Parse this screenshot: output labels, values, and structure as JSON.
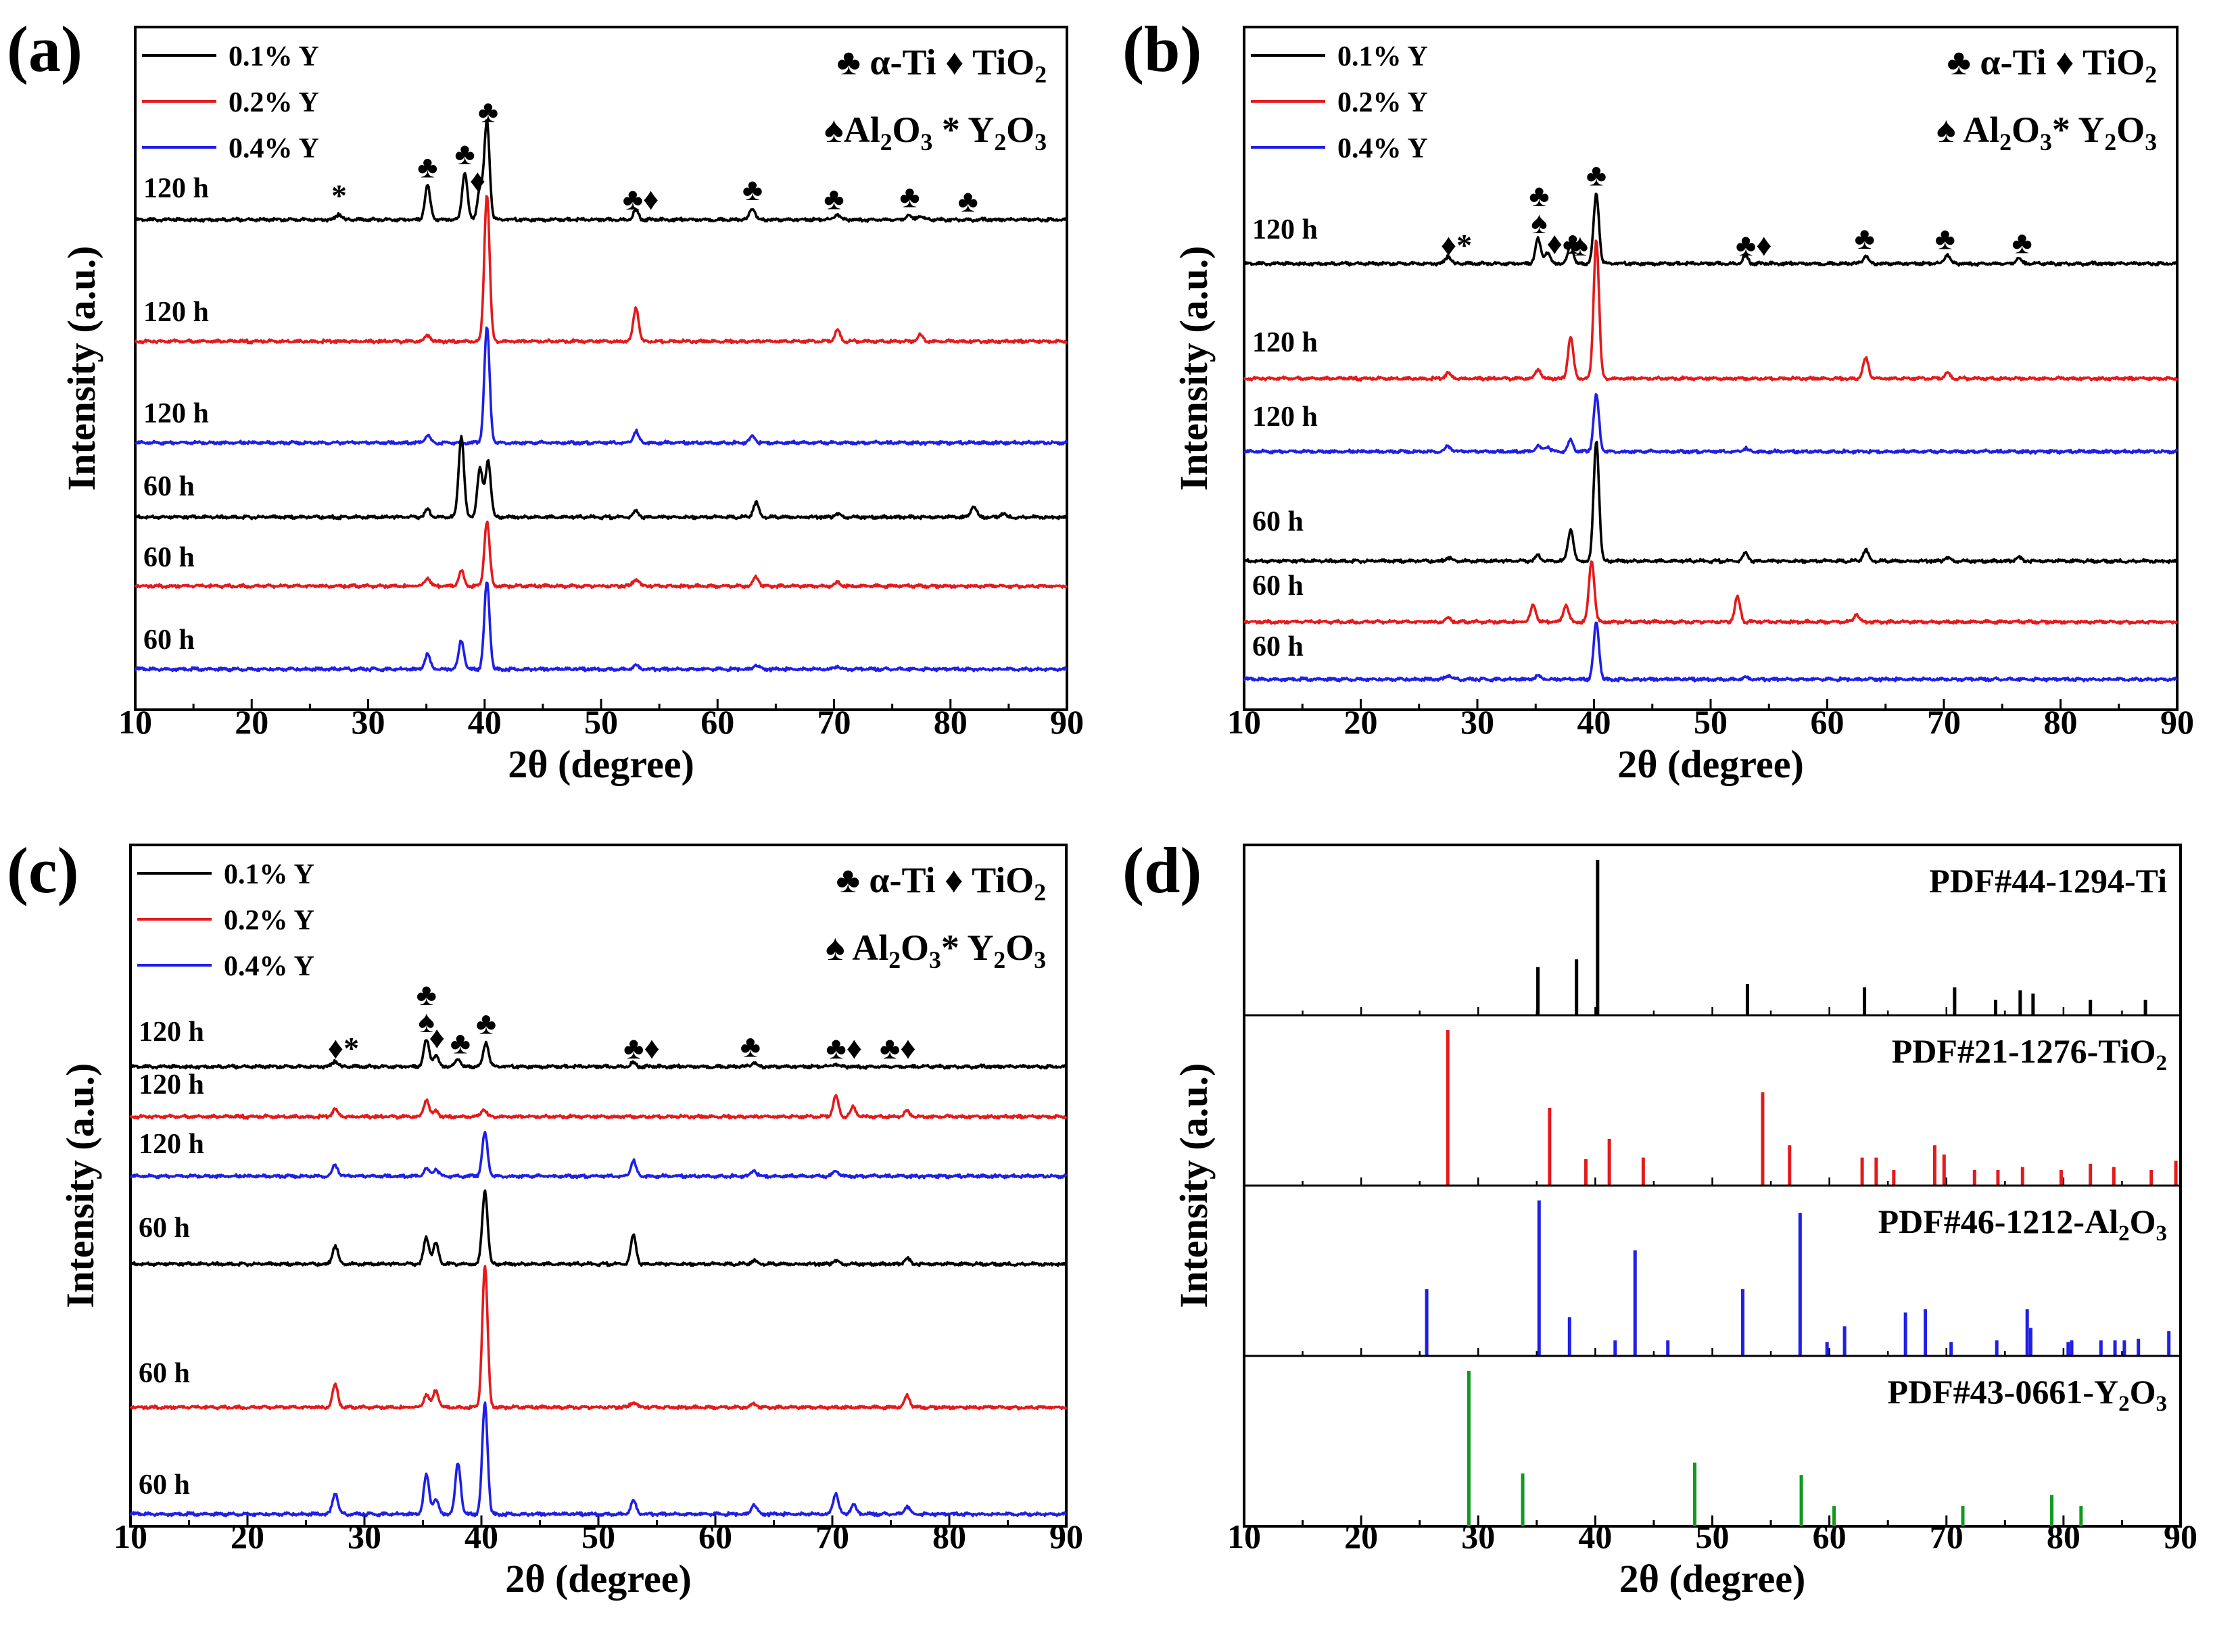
{
  "figure": {
    "axis_tick_labels": [
      "10",
      "20",
      "30",
      "40",
      "50",
      "60",
      "70",
      "80",
      "90"
    ],
    "ylabel": "Intensity (a.u.)",
    "xlabel": "2θ (degree)",
    "colors": {
      "y01": "#000000",
      "y02": "#e41a1c",
      "y04": "#1f1fe6",
      "y2o3": "#0f9a1e",
      "axis": "#000000"
    }
  },
  "chart_data": [
    {
      "panel": "(a)",
      "type": "line",
      "xlabel": "2θ (degree)",
      "ylabel": "Intensity (a.u.)",
      "xlim": [
        10,
        90
      ],
      "legend": [
        {
          "label": "0.1% Y",
          "color": "#000000"
        },
        {
          "label": "0.2% Y",
          "color": "#e41a1c"
        },
        {
          "label": "0.4% Y",
          "color": "#1f1fe6"
        }
      ],
      "phase_legend": {
        "line1": [
          "♣ α-Ti",
          "♦ TiO",
          "2"
        ],
        "line2": [
          "♠Al",
          "2",
          "O",
          "3",
          " * Y",
          "2",
          "O",
          "3"
        ]
      },
      "series": [
        {
          "name": "120 h",
          "color": "#000000",
          "baseline": 1.0,
          "peaks": [
            [
              27.5,
              0.3
            ],
            [
              35.1,
              1.8
            ],
            [
              38.3,
              2.5
            ],
            [
              39.6,
              1.6
            ],
            [
              40.2,
              5.2
            ],
            [
              53.0,
              0.5
            ],
            [
              63.0,
              0.6
            ],
            [
              70.3,
              0.3
            ],
            [
              76.4,
              0.25
            ],
            [
              77.4,
              0.2
            ]
          ]
        },
        {
          "name": "120 h",
          "color": "#e41a1c",
          "baseline": 1.0,
          "peaks": [
            [
              35.1,
              0.35
            ],
            [
              40.2,
              7.8
            ],
            [
              53.0,
              1.8
            ],
            [
              70.3,
              0.6
            ],
            [
              77.4,
              0.35
            ]
          ]
        },
        {
          "name": "120 h",
          "color": "#1f1fe6",
          "baseline": 1.0,
          "peaks": [
            [
              35.1,
              0.4
            ],
            [
              40.2,
              6.1
            ],
            [
              53.0,
              0.6
            ],
            [
              63.0,
              0.35
            ]
          ]
        },
        {
          "name": "60 h",
          "color": "#000000",
          "baseline": 1.0,
          "peaks": [
            [
              35.1,
              0.4
            ],
            [
              38.0,
              4.3
            ],
            [
              39.6,
              2.6
            ],
            [
              40.3,
              3.0
            ],
            [
              53.0,
              0.3
            ],
            [
              63.3,
              0.8
            ],
            [
              70.3,
              0.2
            ],
            [
              82.0,
              0.6
            ],
            [
              84.5,
              0.2
            ]
          ]
        },
        {
          "name": "60 h",
          "color": "#e41a1c",
          "baseline": 1.0,
          "peaks": [
            [
              35.1,
              0.45
            ],
            [
              38.0,
              0.8
            ],
            [
              40.2,
              3.4
            ],
            [
              53.0,
              0.4
            ],
            [
              63.3,
              0.5
            ],
            [
              70.3,
              0.2
            ]
          ]
        },
        {
          "name": "60 h",
          "color": "#1f1fe6",
          "baseline": 1.0,
          "peaks": [
            [
              35.1,
              0.8
            ],
            [
              38.0,
              1.5
            ],
            [
              40.2,
              4.6
            ],
            [
              53.0,
              0.2
            ],
            [
              63.3,
              0.2
            ],
            [
              70.3,
              0.15
            ]
          ]
        }
      ],
      "markers": [
        {
          "x": 27.5,
          "text": "*"
        },
        {
          "x": 35.1,
          "text": "♣"
        },
        {
          "x": 38.3,
          "text": "♣"
        },
        {
          "x": 39.4,
          "text": "♦"
        },
        {
          "x": 40.3,
          "text": "♣"
        },
        {
          "x": 53.4,
          "text": "♣♦"
        },
        {
          "x": 63.0,
          "text": "♣"
        },
        {
          "x": 70.0,
          "text": "♣"
        },
        {
          "x": 76.5,
          "text": "♣"
        },
        {
          "x": 81.5,
          "text": "♣"
        }
      ]
    },
    {
      "panel": "(b)",
      "type": "line",
      "xlabel": "2θ (degree)",
      "ylabel": "Intensity (a.u.)",
      "xlim": [
        10,
        90
      ],
      "legend": [
        {
          "label": "0.1% Y",
          "color": "#000000"
        },
        {
          "label": "0.2% Y",
          "color": "#e41a1c"
        },
        {
          "label": "0.4% Y",
          "color": "#1f1fe6"
        }
      ],
      "phase_legend": {
        "line1": [
          "♣ α-Ti",
          "♦ TiO",
          "2"
        ],
        "line2": [
          "♠ Al",
          "2",
          "O",
          "3",
          "* Y",
          "2",
          "O",
          "3"
        ]
      },
      "series": [
        {
          "name": "120 h",
          "color": "#000000",
          "baseline": 1.0,
          "peaks": [
            [
              27.5,
              0.4
            ],
            [
              35.2,
              1.3
            ],
            [
              36.0,
              0.6
            ],
            [
              38.0,
              1.0
            ],
            [
              40.2,
              3.7
            ],
            [
              53.0,
              0.4
            ],
            [
              63.3,
              0.4
            ],
            [
              70.3,
              0.5
            ],
            [
              76.4,
              0.3
            ]
          ]
        },
        {
          "name": "120 h",
          "color": "#e41a1c",
          "baseline": 1.0,
          "peaks": [
            [
              27.5,
              0.3
            ],
            [
              35.2,
              0.5
            ],
            [
              38.0,
              2.2
            ],
            [
              40.2,
              7.4
            ],
            [
              63.3,
              1.1
            ],
            [
              70.3,
              0.3
            ]
          ]
        },
        {
          "name": "120 h",
          "color": "#1f1fe6",
          "baseline": 1.0,
          "peaks": [
            [
              27.5,
              0.3
            ],
            [
              35.2,
              0.3
            ],
            [
              36.0,
              0.3
            ],
            [
              38.0,
              0.6
            ],
            [
              40.2,
              3.0
            ],
            [
              53.0,
              0.15
            ]
          ]
        },
        {
          "name": "60 h",
          "color": "#000000",
          "baseline": 1.0,
          "peaks": [
            [
              27.5,
              0.2
            ],
            [
              35.2,
              0.3
            ],
            [
              38.0,
              1.7
            ],
            [
              40.2,
              6.4
            ],
            [
              53.0,
              0.4
            ],
            [
              63.3,
              0.6
            ],
            [
              70.3,
              0.2
            ],
            [
              76.4,
              0.2
            ]
          ]
        },
        {
          "name": "60 h",
          "color": "#e41a1c",
          "baseline": 1.0,
          "peaks": [
            [
              27.5,
              0.2
            ],
            [
              34.8,
              0.9
            ],
            [
              37.6,
              0.9
            ],
            [
              39.8,
              3.3
            ],
            [
              52.3,
              1.3
            ],
            [
              62.5,
              0.4
            ]
          ]
        },
        {
          "name": "60 h",
          "color": "#1f1fe6",
          "baseline": 1.0,
          "peaks": [
            [
              27.5,
              0.2
            ],
            [
              35.2,
              0.2
            ],
            [
              40.2,
              3.0
            ],
            [
              53.0,
              0.1
            ]
          ]
        }
      ],
      "markers": [
        {
          "x": 28.2,
          "text": "♦*"
        },
        {
          "x": 35.3,
          "text": "♠"
        },
        {
          "x": 35.3,
          "text": "♣"
        },
        {
          "x": 37.5,
          "text": "♦♣"
        },
        {
          "x": 38.8,
          "text": "♠"
        },
        {
          "x": 40.2,
          "text": "♣"
        },
        {
          "x": 53.7,
          "text": "♣♦"
        },
        {
          "x": 63.2,
          "text": "♣"
        },
        {
          "x": 70.1,
          "text": "♣"
        },
        {
          "x": 76.7,
          "text": "♣"
        }
      ]
    },
    {
      "panel": "(c)",
      "type": "line",
      "xlabel": "2θ (degree)",
      "ylabel": "Intensity (a.u.)",
      "xlim": [
        10,
        90
      ],
      "legend": [
        {
          "label": "0.1% Y",
          "color": "#000000"
        },
        {
          "label": "0.2% Y",
          "color": "#e41a1c"
        },
        {
          "label": "0.4% Y",
          "color": "#1f1fe6"
        }
      ],
      "phase_legend": {
        "line1": [
          "♣ α-Ti",
          "♦ TiO",
          "2"
        ],
        "line2": [
          "♠ Al",
          "2",
          "O",
          "3",
          "* Y",
          "2",
          "O",
          "3"
        ]
      },
      "series": [
        {
          "name": "120 h",
          "color": "#000000",
          "baseline": 1.0,
          "peaks": [
            [
              27.5,
              0.3
            ],
            [
              35.3,
              1.4
            ],
            [
              36.1,
              0.6
            ],
            [
              38.0,
              0.4
            ],
            [
              40.4,
              1.3
            ],
            [
              53.0,
              0.2
            ],
            [
              63.3,
              0.2
            ],
            [
              70.3,
              0.15
            ]
          ]
        },
        {
          "name": "120 h",
          "color": "#e41a1c",
          "baseline": 1.0,
          "peaks": [
            [
              27.5,
              0.4
            ],
            [
              35.3,
              0.9
            ],
            [
              36.1,
              0.3
            ],
            [
              40.2,
              0.4
            ],
            [
              70.3,
              1.1
            ],
            [
              71.8,
              0.5
            ],
            [
              76.4,
              0.3
            ]
          ]
        },
        {
          "name": "120 h",
          "color": "#1f1fe6",
          "baseline": 1.0,
          "peaks": [
            [
              27.5,
              0.6
            ],
            [
              35.3,
              0.4
            ],
            [
              36.1,
              0.4
            ],
            [
              40.3,
              2.3
            ],
            [
              53.0,
              0.8
            ],
            [
              63.3,
              0.3
            ],
            [
              70.3,
              0.3
            ]
          ]
        },
        {
          "name": "60 h",
          "color": "#000000",
          "baseline": 1.0,
          "peaks": [
            [
              27.5,
              1.0
            ],
            [
              35.3,
              1.4
            ],
            [
              36.1,
              1.1
            ],
            [
              40.3,
              3.9
            ],
            [
              53.0,
              1.5
            ],
            [
              63.3,
              0.2
            ],
            [
              70.3,
              0.2
            ],
            [
              76.4,
              0.3
            ]
          ]
        },
        {
          "name": "60 h",
          "color": "#e41a1c",
          "baseline": 1.0,
          "peaks": [
            [
              27.5,
              1.2
            ],
            [
              35.3,
              0.7
            ],
            [
              36.1,
              0.9
            ],
            [
              40.3,
              7.5
            ],
            [
              53.0,
              0.3
            ],
            [
              63.3,
              0.2
            ],
            [
              76.4,
              0.6
            ]
          ]
        },
        {
          "name": "60 h",
          "color": "#1f1fe6",
          "baseline": 1.0,
          "peaks": [
            [
              27.5,
              1.1
            ],
            [
              35.3,
              2.1
            ],
            [
              36.1,
              0.8
            ],
            [
              38.0,
              2.7
            ],
            [
              40.3,
              5.9
            ],
            [
              53.0,
              0.7
            ],
            [
              63.3,
              0.5
            ],
            [
              70.3,
              1.1
            ],
            [
              71.8,
              0.5
            ],
            [
              76.4,
              0.4
            ]
          ]
        }
      ],
      "markers": [
        {
          "x": 28.2,
          "text": "♦*"
        },
        {
          "x": 35.3,
          "text": "♠"
        },
        {
          "x": 35.3,
          "text": "♣"
        },
        {
          "x": 36.2,
          "text": "♦"
        },
        {
          "x": 38.2,
          "text": "♣"
        },
        {
          "x": 40.4,
          "text": "♣"
        },
        {
          "x": 53.7,
          "text": "♣♦"
        },
        {
          "x": 63.0,
          "text": "♣"
        },
        {
          "x": 71.0,
          "text": "♣♦"
        },
        {
          "x": 75.6,
          "text": "♣♦"
        }
      ]
    },
    {
      "panel": "(d)",
      "type": "bar",
      "xlabel": "2θ (degree)",
      "ylabel": "Intensity (a.u.)",
      "xlim": [
        10,
        90
      ],
      "series": [
        {
          "name": "PDF#44-1294-Ti",
          "name_parts": [
            "PDF#44-1294-Ti"
          ],
          "color": "#000000",
          "x": [
            35.1,
            38.4,
            40.2,
            53.0,
            63.0,
            70.7,
            74.2,
            76.3,
            77.4,
            82.3,
            87.0
          ],
          "values": [
            0.31,
            0.36,
            1.0,
            0.2,
            0.18,
            0.18,
            0.1,
            0.16,
            0.14,
            0.1,
            0.1
          ]
        },
        {
          "name": "PDF#21-1276-TiO2",
          "name_parts": [
            "PDF#21-1276-TiO",
            "2"
          ],
          "color": "#e41a1c",
          "x": [
            27.4,
            36.1,
            39.2,
            41.2,
            44.1,
            54.3,
            56.6,
            62.8,
            64.0,
            65.5,
            69.0,
            69.8,
            72.4,
            74.4,
            76.5,
            79.8,
            82.3,
            84.3,
            87.5,
            89.6
          ],
          "values": [
            1.0,
            0.5,
            0.17,
            0.3,
            0.18,
            0.6,
            0.26,
            0.18,
            0.18,
            0.1,
            0.26,
            0.2,
            0.1,
            0.1,
            0.12,
            0.1,
            0.14,
            0.12,
            0.1,
            0.16
          ]
        },
        {
          "name": "PDF#46-1212-Al2O3",
          "name_parts": [
            "PDF#46-1212-Al",
            "2",
            "O",
            "3"
          ],
          "color": "#1f1fe6",
          "x": [
            25.6,
            35.2,
            37.8,
            41.7,
            43.4,
            46.2,
            52.6,
            57.5,
            59.8,
            61.3,
            66.5,
            68.2,
            70.4,
            74.3,
            76.9,
            77.2,
            80.4,
            80.7,
            83.2,
            84.4,
            85.2,
            86.4,
            89.0
          ],
          "values": [
            0.43,
            1.0,
            0.25,
            0.1,
            0.68,
            0.1,
            0.43,
            0.92,
            0.09,
            0.19,
            0.28,
            0.3,
            0.09,
            0.1,
            0.3,
            0.18,
            0.09,
            0.1,
            0.1,
            0.1,
            0.1,
            0.11,
            0.16
          ]
        },
        {
          "name": "PDF#43-0661-Y2O3",
          "name_parts": [
            "PDF#43-0661-Y",
            "2",
            "O",
            "3"
          ],
          "color": "#0f9a1e",
          "x": [
            29.2,
            33.8,
            48.5,
            57.6,
            60.4,
            71.4,
            79.0,
            81.5
          ],
          "values": [
            1.0,
            0.34,
            0.41,
            0.33,
            0.13,
            0.13,
            0.2,
            0.13
          ]
        }
      ]
    }
  ]
}
